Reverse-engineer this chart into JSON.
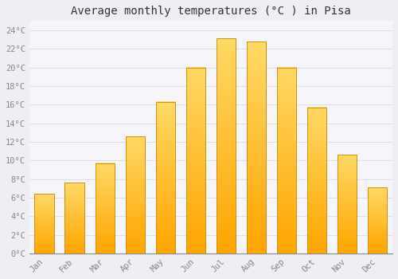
{
  "title": "Average monthly temperatures (°C ) in Pisa",
  "months": [
    "Jan",
    "Feb",
    "Mar",
    "Apr",
    "May",
    "Jun",
    "Jul",
    "Aug",
    "Sep",
    "Oct",
    "Nov",
    "Dec"
  ],
  "temperatures": [
    6.4,
    7.6,
    9.7,
    12.6,
    16.3,
    20.0,
    23.1,
    22.8,
    20.0,
    15.7,
    10.6,
    7.1
  ],
  "bar_color_top": "#FFD966",
  "bar_color_bottom": "#FFA500",
  "bar_edge_color": "#C8960C",
  "background_color": "#EEEEF4",
  "plot_bg_color": "#F5F5FA",
  "grid_color": "#DDDDEE",
  "ytick_labels": [
    "0°C",
    "2°C",
    "4°C",
    "6°C",
    "8°C",
    "10°C",
    "12°C",
    "14°C",
    "16°C",
    "18°C",
    "20°C",
    "22°C",
    "24°C"
  ],
  "ytick_values": [
    0,
    2,
    4,
    6,
    8,
    10,
    12,
    14,
    16,
    18,
    20,
    22,
    24
  ],
  "ylim": [
    0,
    25
  ],
  "title_fontsize": 10,
  "tick_fontsize": 7.5,
  "tick_font_color": "#888888",
  "font_family": "monospace"
}
